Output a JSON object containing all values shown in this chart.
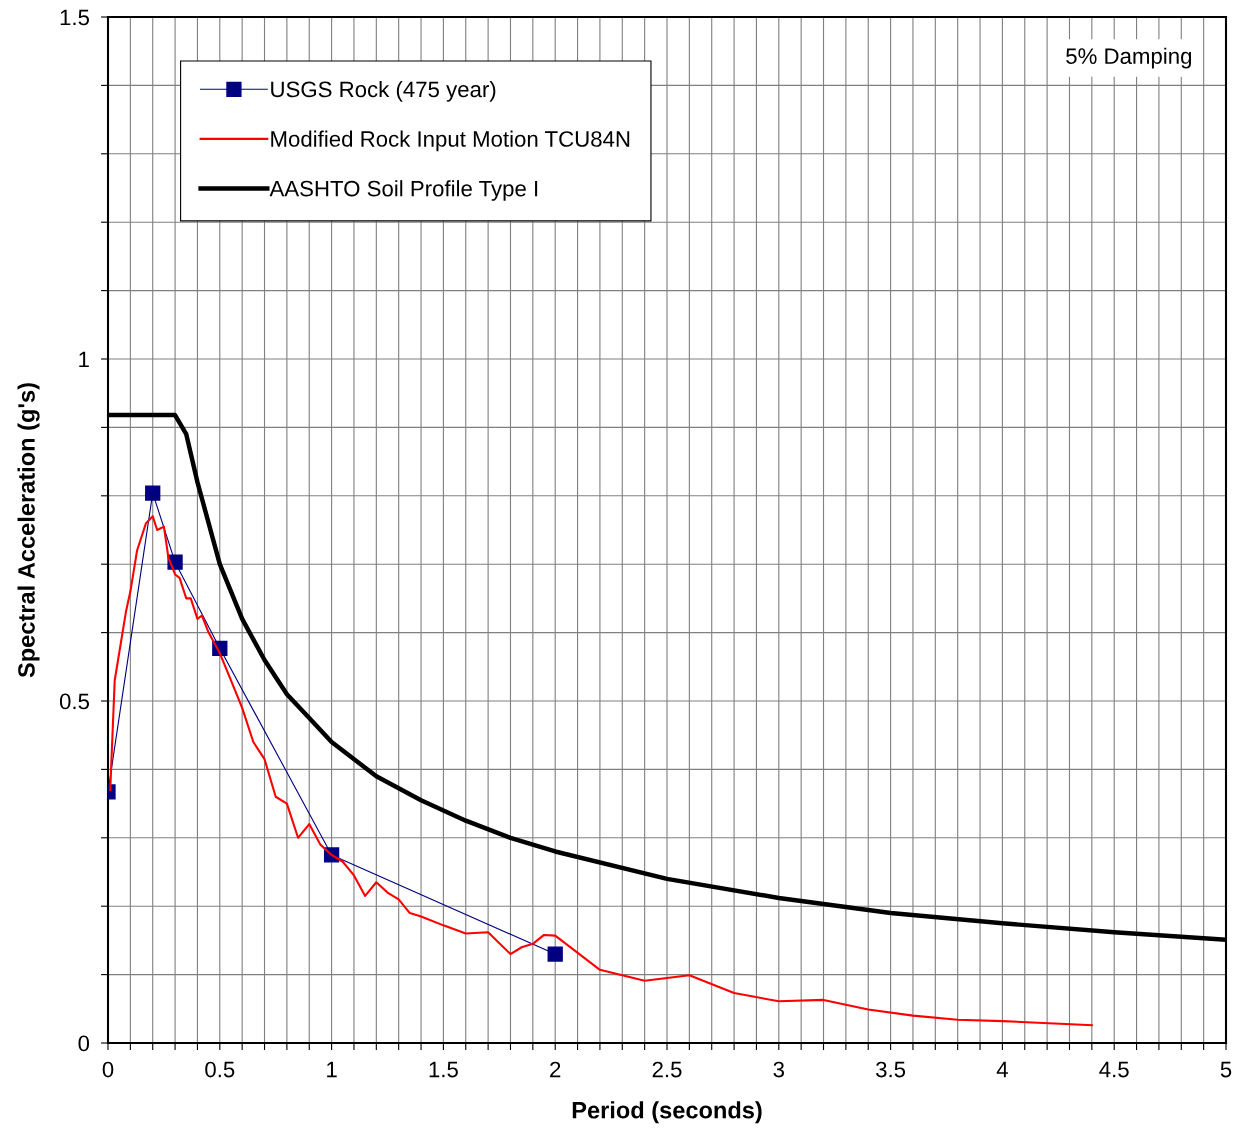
{
  "chart_data": {
    "type": "line",
    "xlabel": "Period (seconds)",
    "ylabel": "Spectral Acceleration (g's)",
    "annotations": [
      "5% Damping"
    ],
    "xlim": [
      0,
      5
    ],
    "ylim": [
      0,
      1.5
    ],
    "xticks": [
      0,
      {
        "value": 0.1,
        "label": null
      },
      {
        "value": 0.2,
        "label": null
      },
      {
        "value": 0.3,
        "label": null
      },
      {
        "value": 0.4,
        "label": null
      },
      0.5,
      {
        "value": 0.6,
        "label": null
      },
      {
        "value": 0.7,
        "label": null
      },
      {
        "value": 0.8,
        "label": null
      },
      {
        "value": 0.9,
        "label": null
      },
      1,
      {
        "value": 1.1,
        "label": null
      },
      {
        "value": 1.2,
        "label": null
      },
      {
        "value": 1.3,
        "label": null
      },
      {
        "value": 1.4,
        "label": null
      },
      1.5,
      {
        "value": 1.6,
        "label": null
      },
      {
        "value": 1.7,
        "label": null
      },
      {
        "value": 1.8,
        "label": null
      },
      {
        "value": 1.9,
        "label": null
      },
      2,
      {
        "value": 2.1,
        "label": null
      },
      {
        "value": 2.2,
        "label": null
      },
      {
        "value": 2.3,
        "label": null
      },
      {
        "value": 2.4,
        "label": null
      },
      2.5,
      {
        "value": 2.6,
        "label": null
      },
      {
        "value": 2.7,
        "label": null
      },
      {
        "value": 2.8,
        "label": null
      },
      {
        "value": 2.9,
        "label": null
      },
      3,
      {
        "value": 3.1,
        "label": null
      },
      {
        "value": 3.2,
        "label": null
      },
      {
        "value": 3.3,
        "label": null
      },
      {
        "value": 3.4,
        "label": null
      },
      3.5,
      {
        "value": 3.6,
        "label": null
      },
      {
        "value": 3.7,
        "label": null
      },
      {
        "value": 3.8,
        "label": null
      },
      {
        "value": 3.9,
        "label": null
      },
      4,
      {
        "value": 4.1,
        "label": null
      },
      {
        "value": 4.2,
        "label": null
      },
      {
        "value": 4.3,
        "label": null
      },
      {
        "value": 4.4,
        "label": null
      },
      4.5,
      {
        "value": 4.6,
        "label": null
      },
      {
        "value": 4.7,
        "label": null
      },
      {
        "value": 4.8,
        "label": null
      },
      {
        "value": 4.9,
        "label": null
      },
      5
    ],
    "yticks": [
      0,
      {
        "value": 0.1,
        "label": null
      },
      {
        "value": 0.2,
        "label": null
      },
      {
        "value": 0.3,
        "label": null
      },
      {
        "value": 0.4,
        "label": null
      },
      0.5,
      {
        "value": 0.6,
        "label": null
      },
      {
        "value": 0.7,
        "label": null
      },
      {
        "value": 0.8,
        "label": null
      },
      {
        "value": 0.9,
        "label": null
      },
      1,
      {
        "value": 1.1,
        "label": null
      },
      {
        "value": 1.2,
        "label": null
      },
      {
        "value": 1.3,
        "label": null
      },
      {
        "value": 1.4,
        "label": null
      },
      1.5
    ],
    "grid": true,
    "legend": "top left",
    "series": [
      {
        "name": "USGS Rock (475 year)",
        "color": "#000080",
        "marker": "square",
        "x": [
          0,
          0.2,
          0.3,
          0.5,
          1.0,
          2.0
        ],
        "values": [
          0.367,
          0.804,
          0.703,
          0.577,
          0.275,
          0.13
        ]
      },
      {
        "name": "Modified Rock Input Motion TCU84N",
        "color": "#ff0000",
        "marker": "none",
        "x": [
          0.01,
          0.03,
          0.08,
          0.1,
          0.13,
          0.17,
          0.2,
          0.22,
          0.25,
          0.27,
          0.3,
          0.32,
          0.35,
          0.37,
          0.4,
          0.42,
          0.45,
          0.5,
          0.55,
          0.6,
          0.65,
          0.7,
          0.75,
          0.8,
          0.85,
          0.9,
          0.95,
          1.0,
          1.05,
          1.1,
          1.15,
          1.2,
          1.25,
          1.3,
          1.35,
          1.4,
          1.5,
          1.6,
          1.7,
          1.8,
          1.85,
          1.9,
          1.95,
          2.0,
          2.2,
          2.4,
          2.6,
          2.8,
          3.0,
          3.2,
          3.4,
          3.6,
          3.8,
          4.0,
          4.4
        ],
        "values": [
          0.37,
          0.53,
          0.63,
          0.66,
          0.72,
          0.76,
          0.77,
          0.75,
          0.755,
          0.71,
          0.685,
          0.68,
          0.65,
          0.65,
          0.62,
          0.625,
          0.6,
          0.57,
          0.53,
          0.49,
          0.44,
          0.415,
          0.36,
          0.35,
          0.3,
          0.32,
          0.29,
          0.275,
          0.265,
          0.245,
          0.215,
          0.235,
          0.22,
          0.21,
          0.19,
          0.185,
          0.172,
          0.16,
          0.162,
          0.13,
          0.14,
          0.145,
          0.158,
          0.157,
          0.107,
          0.091,
          0.099,
          0.073,
          0.061,
          0.063,
          0.049,
          0.04,
          0.034,
          0.032,
          0.026
        ]
      },
      {
        "name": "AASHTO Soil Profile Type I",
        "color": "#000000",
        "marker": "none",
        "x": [
          0,
          0.3,
          0.35,
          0.4,
          0.45,
          0.5,
          0.6,
          0.7,
          0.8,
          0.9,
          1.0,
          1.2,
          1.4,
          1.6,
          1.8,
          2.0,
          2.5,
          3.0,
          3.5,
          4.0,
          4.5,
          5.0
        ],
        "values": [
          0.918,
          0.918,
          0.89,
          0.82,
          0.76,
          0.7,
          0.62,
          0.56,
          0.51,
          0.475,
          0.44,
          0.39,
          0.355,
          0.325,
          0.3,
          0.28,
          0.24,
          0.212,
          0.19,
          0.175,
          0.162,
          0.151
        ]
      }
    ]
  }
}
